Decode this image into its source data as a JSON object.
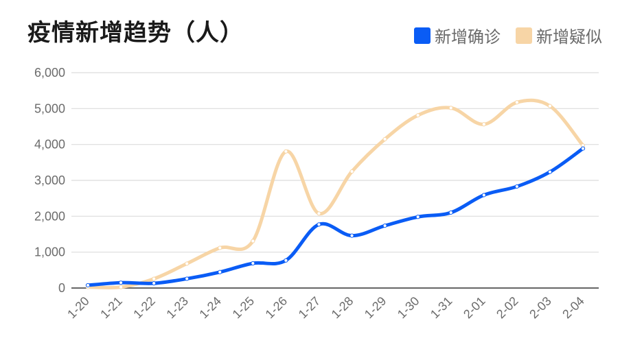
{
  "title": "疫情新增趋势（人）",
  "colors": {
    "confirmed": "#0a5cf5",
    "suspected": "#f7d5a6",
    "grid": "#dcdcdc",
    "axis": "#333333"
  },
  "chart_data": {
    "type": "line",
    "title": "疫情新增趋势（人）",
    "xlabel": "",
    "ylabel": "",
    "categories": [
      "1-20",
      "1-21",
      "1-22",
      "1-23",
      "1-24",
      "1-25",
      "1-26",
      "1-27",
      "1-28",
      "1-29",
      "1-30",
      "1-31",
      "2-01",
      "2-02",
      "2-03",
      "2-04"
    ],
    "y_ticks": [
      "6,000",
      "5,000",
      "4,000",
      "3,000",
      "2,000",
      "1,000",
      "0"
    ],
    "ylim": [
      0,
      6000
    ],
    "grid": true,
    "smooth": true,
    "legend_position": "top-right",
    "series": [
      {
        "name": "新增确诊",
        "values": [
          77,
          149,
          131,
          259,
          444,
          688,
          769,
          1771,
          1459,
          1737,
          1982,
          2102,
          2590,
          2829,
          3235,
          3887
        ]
      },
      {
        "name": "新增疑似",
        "values": [
          27,
          26,
          257,
          680,
          1118,
          1309,
          3806,
          2077,
          3248,
          4148,
          4812,
          5019,
          4562,
          5173,
          5072,
          3971
        ]
      }
    ]
  }
}
